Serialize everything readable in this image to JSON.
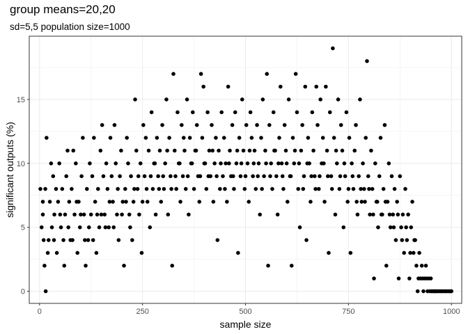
{
  "chart_data": {
    "type": "scatter",
    "title": "group means=20,20",
    "subtitle": "sd=5,5  population size=1000",
    "xlabel": "sample size",
    "ylabel": "significant outputs (%)",
    "xlim": [
      -25,
      1025
    ],
    "ylim": [
      -0.95,
      19.95
    ],
    "x_ticks": [
      0,
      250,
      500,
      750,
      1000
    ],
    "y_ticks": [
      0,
      5,
      10,
      15
    ],
    "grid": true,
    "legend": "none",
    "point_color": "#000000",
    "points": [
      [
        2,
        8
      ],
      [
        5,
        5
      ],
      [
        8,
        6
      ],
      [
        10,
        4
      ],
      [
        12,
        2
      ],
      [
        14,
        8
      ],
      [
        17,
        12
      ],
      [
        20,
        3
      ],
      [
        25,
        7
      ],
      [
        28,
        10
      ],
      [
        30,
        5
      ],
      [
        33,
        9
      ],
      [
        36,
        6
      ],
      [
        40,
        8
      ],
      [
        42,
        3
      ],
      [
        45,
        7
      ],
      [
        48,
        10
      ],
      [
        52,
        5
      ],
      [
        55,
        8
      ],
      [
        58,
        4
      ],
      [
        62,
        6
      ],
      [
        65,
        9
      ],
      [
        68,
        11
      ],
      [
        72,
        7
      ],
      [
        75,
        4
      ],
      [
        78,
        8
      ],
      [
        82,
        11
      ],
      [
        85,
        6
      ],
      [
        88,
        10
      ],
      [
        92,
        3
      ],
      [
        95,
        7
      ],
      [
        98,
        5
      ],
      [
        102,
        9
      ],
      [
        105,
        12
      ],
      [
        108,
        6
      ],
      [
        112,
        2
      ],
      [
        115,
        8
      ],
      [
        118,
        4
      ],
      [
        122,
        10
      ],
      [
        125,
        6
      ],
      [
        128,
        9
      ],
      [
        132,
        12
      ],
      [
        135,
        7
      ],
      [
        138,
        3
      ],
      [
        142,
        8
      ],
      [
        145,
        5
      ],
      [
        148,
        11
      ],
      [
        152,
        13
      ],
      [
        155,
        9
      ],
      [
        158,
        6
      ],
      [
        162,
        10
      ],
      [
        165,
        8
      ],
      [
        168,
        5
      ],
      [
        172,
        12
      ],
      [
        175,
        9
      ],
      [
        178,
        7
      ],
      [
        182,
        13
      ],
      [
        185,
        10
      ],
      [
        188,
        6
      ],
      [
        192,
        4
      ],
      [
        195,
        9
      ],
      [
        198,
        11
      ],
      [
        202,
        7
      ],
      [
        205,
        2
      ],
      [
        208,
        8
      ],
      [
        212,
        12
      ],
      [
        215,
        10
      ],
      [
        218,
        6
      ],
      [
        222,
        9
      ],
      [
        225,
        4
      ],
      [
        228,
        7
      ],
      [
        232,
        15
      ],
      [
        235,
        11
      ],
      [
        238,
        8
      ],
      [
        242,
        6
      ],
      [
        245,
        10
      ],
      [
        248,
        3
      ],
      [
        252,
        13
      ],
      [
        255,
        9
      ],
      [
        258,
        12
      ],
      [
        262,
        7
      ],
      [
        265,
        11
      ],
      [
        268,
        5
      ],
      [
        272,
        14
      ],
      [
        275,
        8
      ],
      [
        278,
        10
      ],
      [
        282,
        6
      ],
      [
        285,
        12
      ],
      [
        288,
        9
      ],
      [
        292,
        11
      ],
      [
        295,
        7
      ],
      [
        298,
        13
      ],
      [
        302,
        8
      ],
      [
        305,
        10
      ],
      [
        308,
        15
      ],
      [
        312,
        6
      ],
      [
        315,
        12
      ],
      [
        318,
        9
      ],
      [
        322,
        2
      ],
      [
        325,
        17
      ],
      [
        328,
        11
      ],
      [
        332,
        8
      ],
      [
        335,
        14
      ],
      [
        338,
        10
      ],
      [
        342,
        7
      ],
      [
        345,
        13
      ],
      [
        348,
        9
      ],
      [
        352,
        11
      ],
      [
        355,
        8
      ],
      [
        358,
        15
      ],
      [
        362,
        6
      ],
      [
        365,
        12
      ],
      [
        368,
        10
      ],
      [
        372,
        14
      ],
      [
        375,
        8
      ],
      [
        378,
        11
      ],
      [
        382,
        13
      ],
      [
        385,
        9
      ],
      [
        388,
        7
      ],
      [
        392,
        17
      ],
      [
        395,
        12
      ],
      [
        398,
        16
      ],
      [
        402,
        10
      ],
      [
        405,
        8
      ],
      [
        408,
        14
      ],
      [
        412,
        11
      ],
      [
        415,
        9
      ],
      [
        418,
        13
      ],
      [
        422,
        7
      ],
      [
        425,
        10
      ],
      [
        428,
        12
      ],
      [
        432,
        4
      ],
      [
        435,
        11
      ],
      [
        438,
        8
      ],
      [
        442,
        14
      ],
      [
        445,
        9
      ],
      [
        448,
        12
      ],
      [
        452,
        10
      ],
      [
        455,
        7
      ],
      [
        458,
        16
      ],
      [
        462,
        11
      ],
      [
        465,
        9
      ],
      [
        468,
        13
      ],
      [
        472,
        8
      ],
      [
        475,
        14
      ],
      [
        478,
        10
      ],
      [
        482,
        3
      ],
      [
        485,
        12
      ],
      [
        488,
        9
      ],
      [
        492,
        15
      ],
      [
        495,
        11
      ],
      [
        498,
        8
      ],
      [
        502,
        13
      ],
      [
        505,
        10
      ],
      [
        508,
        7
      ],
      [
        512,
        14
      ],
      [
        515,
        12
      ],
      [
        518,
        9
      ],
      [
        522,
        11
      ],
      [
        525,
        8
      ],
      [
        528,
        13
      ],
      [
        532,
        10
      ],
      [
        535,
        6
      ],
      [
        538,
        12
      ],
      [
        542,
        15
      ],
      [
        545,
        9
      ],
      [
        548,
        11
      ],
      [
        552,
        17
      ],
      [
        555,
        2
      ],
      [
        558,
        13
      ],
      [
        562,
        10
      ],
      [
        565,
        8
      ],
      [
        568,
        14
      ],
      [
        572,
        11
      ],
      [
        575,
        9
      ],
      [
        578,
        6
      ],
      [
        582,
        12
      ],
      [
        585,
        16
      ],
      [
        588,
        10
      ],
      [
        592,
        8
      ],
      [
        595,
        13
      ],
      [
        598,
        11
      ],
      [
        602,
        7
      ],
      [
        605,
        15
      ],
      [
        608,
        9
      ],
      [
        612,
        2
      ],
      [
        615,
        12
      ],
      [
        618,
        10
      ],
      [
        622,
        17
      ],
      [
        625,
        14
      ],
      [
        628,
        8
      ],
      [
        632,
        5
      ],
      [
        635,
        11
      ],
      [
        638,
        13
      ],
      [
        642,
        9
      ],
      [
        645,
        16
      ],
      [
        648,
        4
      ],
      [
        652,
        12
      ],
      [
        655,
        10
      ],
      [
        658,
        7
      ],
      [
        662,
        14
      ],
      [
        665,
        11
      ],
      [
        668,
        9
      ],
      [
        672,
        16
      ],
      [
        675,
        13
      ],
      [
        678,
        8
      ],
      [
        682,
        15
      ],
      [
        685,
        10
      ],
      [
        688,
        12
      ],
      [
        692,
        7
      ],
      [
        695,
        16
      ],
      [
        698,
        11
      ],
      [
        702,
        3
      ],
      [
        705,
        14
      ],
      [
        708,
        9
      ],
      [
        712,
        19
      ],
      [
        715,
        12
      ],
      [
        718,
        6
      ],
      [
        722,
        10
      ],
      [
        725,
        15
      ],
      [
        728,
        8
      ],
      [
        732,
        13
      ],
      [
        735,
        11
      ],
      [
        738,
        5
      ],
      [
        742,
        9
      ],
      [
        745,
        14
      ],
      [
        748,
        7
      ],
      [
        752,
        12
      ],
      [
        755,
        3
      ],
      [
        758,
        10
      ],
      [
        762,
        8
      ],
      [
        765,
        11
      ],
      [
        768,
        13
      ],
      [
        772,
        6
      ],
      [
        775,
        9
      ],
      [
        778,
        15
      ],
      [
        782,
        7
      ],
      [
        785,
        10
      ],
      [
        788,
        8
      ],
      [
        792,
        12
      ],
      [
        795,
        18
      ],
      [
        798,
        9
      ],
      [
        802,
        6
      ],
      [
        805,
        11
      ],
      [
        808,
        8
      ],
      [
        812,
        1
      ],
      [
        815,
        10
      ],
      [
        818,
        7
      ],
      [
        822,
        5
      ],
      [
        825,
        9
      ],
      [
        828,
        12
      ],
      [
        832,
        6
      ],
      [
        835,
        8
      ],
      [
        838,
        13
      ],
      [
        842,
        2
      ],
      [
        845,
        7
      ],
      [
        848,
        10
      ],
      [
        852,
        5
      ],
      [
        855,
        9
      ],
      [
        858,
        6
      ],
      [
        862,
        8
      ],
      [
        865,
        4
      ],
      [
        868,
        7
      ],
      [
        872,
        1
      ],
      [
        875,
        9
      ],
      [
        878,
        5
      ],
      [
        882,
        6
      ],
      [
        885,
        3
      ],
      [
        888,
        8
      ],
      [
        892,
        4
      ],
      [
        895,
        6
      ],
      [
        898,
        1
      ],
      [
        902,
        5
      ],
      [
        905,
        7
      ],
      [
        908,
        3
      ],
      [
        912,
        4
      ],
      [
        915,
        2
      ],
      [
        918,
        0
      ],
      [
        922,
        3
      ],
      [
        925,
        1
      ],
      [
        928,
        2
      ],
      [
        932,
        0
      ],
      [
        935,
        1
      ],
      [
        938,
        2
      ],
      [
        942,
        0
      ],
      [
        945,
        1
      ],
      [
        948,
        0
      ],
      [
        952,
        0
      ],
      [
        955,
        0
      ],
      [
        958,
        0
      ],
      [
        962,
        0
      ],
      [
        965,
        0
      ],
      [
        968,
        0
      ],
      [
        972,
        0
      ],
      [
        975,
        0
      ],
      [
        978,
        0
      ],
      [
        982,
        0
      ],
      [
        985,
        0
      ],
      [
        988,
        0
      ],
      [
        992,
        0
      ],
      [
        995,
        0
      ],
      [
        998,
        0
      ],
      [
        1000,
        0
      ],
      [
        8,
        7
      ],
      [
        15,
        0
      ],
      [
        22,
        4
      ],
      [
        35,
        4
      ],
      [
        50,
        6
      ],
      [
        60,
        2
      ],
      [
        70,
        5
      ],
      [
        80,
        4
      ],
      [
        90,
        7
      ],
      [
        100,
        6
      ],
      [
        110,
        4
      ],
      [
        120,
        5
      ],
      [
        130,
        4
      ],
      [
        140,
        6
      ],
      [
        150,
        6
      ],
      [
        160,
        5
      ],
      [
        170,
        7
      ],
      [
        180,
        5
      ],
      [
        190,
        8
      ],
      [
        200,
        6
      ],
      [
        210,
        7
      ],
      [
        220,
        5
      ],
      [
        230,
        8
      ],
      [
        240,
        9
      ],
      [
        250,
        7
      ],
      [
        260,
        8
      ],
      [
        270,
        9
      ],
      [
        280,
        10
      ],
      [
        290,
        8
      ],
      [
        300,
        9
      ],
      [
        310,
        11
      ],
      [
        320,
        8
      ],
      [
        330,
        9
      ],
      [
        340,
        10
      ],
      [
        350,
        12
      ],
      [
        360,
        9
      ],
      [
        370,
        10
      ],
      [
        380,
        11
      ],
      [
        390,
        9
      ],
      [
        400,
        10
      ],
      [
        410,
        9
      ],
      [
        420,
        11
      ],
      [
        430,
        9
      ],
      [
        440,
        10
      ],
      [
        450,
        8
      ],
      [
        460,
        10
      ],
      [
        470,
        9
      ],
      [
        480,
        11
      ],
      [
        490,
        10
      ],
      [
        500,
        9
      ],
      [
        510,
        11
      ],
      [
        520,
        10
      ],
      [
        530,
        9
      ],
      [
        540,
        8
      ],
      [
        550,
        10
      ],
      [
        560,
        9
      ],
      [
        570,
        11
      ],
      [
        580,
        10
      ],
      [
        590,
        9
      ],
      [
        600,
        10
      ],
      [
        610,
        9
      ],
      [
        620,
        11
      ],
      [
        630,
        10
      ],
      [
        640,
        8
      ],
      [
        650,
        10
      ],
      [
        660,
        9
      ],
      [
        670,
        8
      ],
      [
        680,
        9
      ],
      [
        690,
        10
      ],
      [
        700,
        9
      ],
      [
        710,
        8
      ],
      [
        720,
        11
      ],
      [
        730,
        9
      ],
      [
        740,
        10
      ],
      [
        750,
        8
      ],
      [
        760,
        9
      ],
      [
        770,
        7
      ],
      [
        780,
        8
      ],
      [
        790,
        7
      ],
      [
        800,
        8
      ],
      [
        810,
        6
      ],
      [
        820,
        7
      ],
      [
        830,
        6
      ],
      [
        840,
        7
      ],
      [
        850,
        6
      ],
      [
        860,
        5
      ],
      [
        870,
        6
      ],
      [
        880,
        4
      ],
      [
        890,
        5
      ],
      [
        900,
        3
      ],
      [
        910,
        4
      ],
      [
        920,
        1
      ],
      [
        930,
        1
      ],
      [
        940,
        1
      ],
      [
        950,
        1
      ],
      [
        960,
        0
      ]
    ]
  }
}
